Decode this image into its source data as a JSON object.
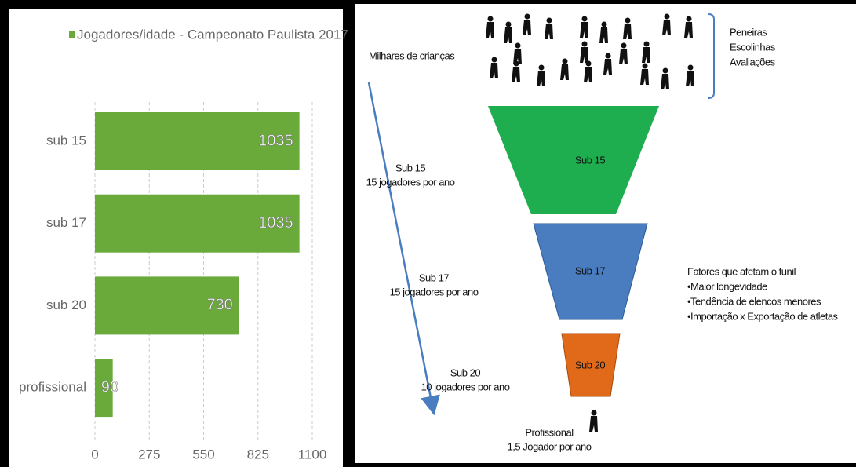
{
  "chart_data": {
    "type": "bar",
    "orientation": "horizontal",
    "categories": [
      "sub 15",
      "sub 17",
      "sub 20",
      "profissional"
    ],
    "series": [
      {
        "name": "Jogadores/idade - Campeonato Paulista 2017",
        "color": "#6aaa3a",
        "values": [
          1035,
          1035,
          730,
          90
        ]
      }
    ],
    "xlim": [
      0,
      1100
    ],
    "xticks": [
      0,
      275,
      550,
      825,
      1100
    ],
    "grid": true
  },
  "diagram": {
    "top_label": "Milhares de crianças",
    "sources": [
      "Peneiras",
      "Escolinhas",
      "Avaliações"
    ],
    "funnel": [
      "Sub 15",
      "Sub 17",
      "Sub 20"
    ],
    "stages": [
      {
        "name": "Sub 15",
        "rate": "15 jogadores por ano"
      },
      {
        "name": "Sub 17",
        "rate": "15 jogadores por ano"
      },
      {
        "name": "Sub 20",
        "rate": "10 jogadores por ano"
      },
      {
        "name": "Profissional",
        "rate": "1,5 Jogador por ano"
      }
    ],
    "factors_title": "Fatores que afetam o funil",
    "factors": [
      "•Maior longevidade",
      "•Tendência de elencos menores",
      "•Importação x Exportação de atletas"
    ]
  }
}
